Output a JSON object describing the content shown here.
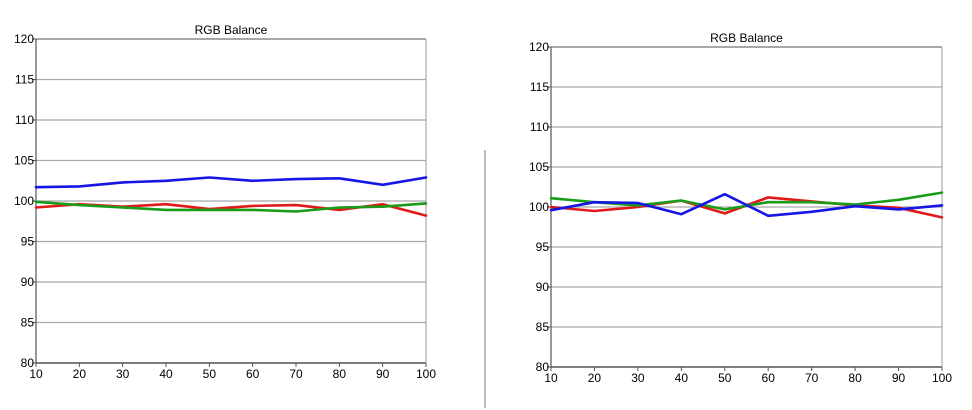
{
  "chart_data": [
    {
      "type": "line",
      "title": "RGB Balance",
      "xlabel": "",
      "ylabel": "",
      "x": [
        10,
        20,
        30,
        40,
        50,
        60,
        70,
        80,
        90,
        100
      ],
      "xlim": [
        10,
        100
      ],
      "ylim": [
        80,
        120
      ],
      "yticks": [
        80,
        85,
        90,
        95,
        100,
        105,
        110,
        115,
        120
      ],
      "grid": true,
      "series": [
        {
          "color": "#e01a1a",
          "values": [
            99.2,
            99.6,
            99.3,
            99.6,
            99.0,
            99.4,
            99.5,
            98.9,
            99.6,
            98.2
          ]
        },
        {
          "color": "#1a9c1a",
          "values": [
            99.9,
            99.5,
            99.2,
            98.9,
            98.9,
            98.9,
            98.7,
            99.2,
            99.3,
            99.7
          ]
        },
        {
          "color": "#1515e6",
          "values": [
            101.7,
            101.8,
            102.3,
            102.5,
            102.9,
            102.5,
            102.7,
            102.8,
            102.0,
            102.9
          ]
        }
      ]
    },
    {
      "type": "line",
      "title": "RGB Balance",
      "xlabel": "",
      "ylabel": "",
      "x": [
        10,
        20,
        30,
        40,
        50,
        60,
        70,
        80,
        90,
        100
      ],
      "xlim": [
        10,
        100
      ],
      "ylim": [
        80,
        120
      ],
      "yticks": [
        80,
        85,
        90,
        95,
        100,
        105,
        110,
        115,
        120
      ],
      "grid": true,
      "series": [
        {
          "color": "#e01a1a",
          "values": [
            100.0,
            99.5,
            100.0,
            100.8,
            99.2,
            101.2,
            100.7,
            100.2,
            99.9,
            98.7
          ]
        },
        {
          "color": "#1a9c1a",
          "values": [
            101.1,
            100.6,
            100.2,
            100.8,
            99.7,
            100.6,
            100.6,
            100.3,
            100.9,
            101.8
          ]
        },
        {
          "color": "#1515e6",
          "values": [
            99.6,
            100.6,
            100.5,
            99.1,
            101.6,
            98.9,
            99.4,
            100.1,
            99.7,
            100.2
          ]
        }
      ]
    }
  ]
}
